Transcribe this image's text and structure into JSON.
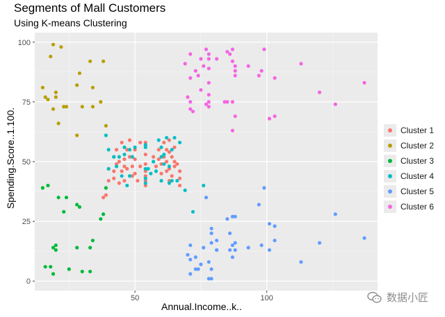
{
  "chart_data": {
    "type": "scatter",
    "title": "Segments of Mall Customers",
    "subtitle": "Using K-means Clustering",
    "xlabel": "Annual.Income..k..",
    "ylabel": "Spending.Score..1.100.",
    "xlim": [
      12,
      142
    ],
    "ylim": [
      -4,
      104
    ],
    "x_ticks": [
      50,
      100
    ],
    "y_ticks": [
      0,
      25,
      50,
      75,
      100
    ],
    "grid": true,
    "legend_position": "right",
    "series": [
      {
        "name": "Cluster 1",
        "color": "#F8766D",
        "points": [
          [
            38,
            35
          ],
          [
            39,
            36
          ],
          [
            40,
            42
          ],
          [
            40,
            47
          ],
          [
            42,
            52
          ],
          [
            42,
            46
          ],
          [
            43,
            55
          ],
          [
            43,
            49
          ],
          [
            44,
            50
          ],
          [
            45,
            46
          ],
          [
            45,
            58
          ],
          [
            46,
            51
          ],
          [
            46,
            42
          ],
          [
            47,
            47
          ],
          [
            47,
            55
          ],
          [
            48,
            52
          ],
          [
            48,
            59
          ],
          [
            49,
            44
          ],
          [
            49,
            48
          ],
          [
            50,
            45
          ],
          [
            50,
            51
          ],
          [
            51,
            42
          ],
          [
            52,
            48
          ],
          [
            54,
            44
          ],
          [
            54,
            49
          ],
          [
            54,
            46
          ],
          [
            54,
            40
          ],
          [
            54,
            53
          ],
          [
            54,
            58
          ],
          [
            54,
            42
          ],
          [
            58,
            48
          ],
          [
            59,
            51
          ],
          [
            60,
            42
          ],
          [
            60,
            49
          ],
          [
            61,
            52
          ],
          [
            62,
            50
          ],
          [
            62,
            55
          ],
          [
            62,
            46
          ],
          [
            63,
            42
          ],
          [
            63,
            47
          ],
          [
            64,
            52
          ],
          [
            64,
            44
          ],
          [
            65,
            48
          ],
          [
            65,
            50
          ],
          [
            67,
            46
          ],
          [
            67,
            43
          ],
          [
            67,
            40
          ],
          [
            63,
            54
          ],
          [
            65,
            56
          ],
          [
            66,
            49
          ],
          [
            59,
            55
          ],
          [
            63,
            59
          ],
          [
            52,
            58
          ],
          [
            57,
            52
          ],
          [
            60,
            45
          ],
          [
            46,
            48
          ],
          [
            44,
            41
          ],
          [
            42,
            43
          ],
          [
            50,
            55
          ],
          [
            61,
            58
          ]
        ]
      },
      {
        "name": "Cluster 2",
        "color": "#B79F00",
        "points": [
          [
            15,
            81
          ],
          [
            16,
            77
          ],
          [
            17,
            76
          ],
          [
            18,
            94
          ],
          [
            19,
            72
          ],
          [
            19,
            99
          ],
          [
            20,
            77
          ],
          [
            20,
            79
          ],
          [
            21,
            66
          ],
          [
            22,
            98
          ],
          [
            23,
            73
          ],
          [
            24,
            73
          ],
          [
            28,
            82
          ],
          [
            28,
            61
          ],
          [
            29,
            87
          ],
          [
            30,
            73
          ],
          [
            33,
            92
          ],
          [
            34,
            73
          ],
          [
            34,
            81
          ],
          [
            37,
            75
          ],
          [
            38,
            92
          ],
          [
            39,
            65
          ]
        ]
      },
      {
        "name": "Cluster 3",
        "color": "#00BA38",
        "points": [
          [
            15,
            39
          ],
          [
            16,
            6
          ],
          [
            17,
            40
          ],
          [
            18,
            6
          ],
          [
            19,
            3
          ],
          [
            19,
            14
          ],
          [
            20,
            15
          ],
          [
            20,
            13
          ],
          [
            21,
            35
          ],
          [
            23,
            29
          ],
          [
            24,
            35
          ],
          [
            25,
            5
          ],
          [
            28,
            14
          ],
          [
            28,
            32
          ],
          [
            29,
            31
          ],
          [
            30,
            4
          ],
          [
            33,
            4
          ],
          [
            33,
            14
          ],
          [
            34,
            17
          ],
          [
            37,
            26
          ],
          [
            38,
            28
          ],
          [
            39,
            39
          ]
        ]
      },
      {
        "name": "Cluster 4",
        "color": "#00BFC4",
        "points": [
          [
            39,
            61
          ],
          [
            40,
            55
          ],
          [
            40,
            47
          ],
          [
            42,
            52
          ],
          [
            43,
            48
          ],
          [
            44,
            52
          ],
          [
            45,
            44
          ],
          [
            46,
            56
          ],
          [
            46,
            53
          ],
          [
            47,
            40
          ],
          [
            48,
            55
          ],
          [
            49,
            52
          ],
          [
            50,
            56
          ],
          [
            54,
            57
          ],
          [
            54,
            47
          ],
          [
            54,
            43
          ],
          [
            54,
            56
          ],
          [
            54,
            41
          ],
          [
            55,
            47
          ],
          [
            57,
            50
          ],
          [
            58,
            46
          ],
          [
            59,
            59
          ],
          [
            60,
            52
          ],
          [
            60,
            42
          ],
          [
            61,
            49
          ],
          [
            61,
            53
          ],
          [
            62,
            60
          ],
          [
            63,
            41
          ],
          [
            63,
            48
          ],
          [
            64,
            42
          ],
          [
            65,
            60
          ],
          [
            66,
            42
          ],
          [
            67,
            58
          ],
          [
            69,
            38
          ],
          [
            72,
            29
          ],
          [
            76,
            40
          ],
          [
            64,
            55
          ],
          [
            48,
            44
          ],
          [
            56,
            45
          ],
          [
            60,
            56
          ]
        ]
      },
      {
        "name": "Cluster 5",
        "color": "#619CFF",
        "points": [
          [
            70,
            11
          ],
          [
            71,
            9
          ],
          [
            71,
            15
          ],
          [
            71,
            3
          ],
          [
            73,
            5
          ],
          [
            73,
            10
          ],
          [
            74,
            5
          ],
          [
            75,
            7
          ],
          [
            76,
            14
          ],
          [
            77,
            35
          ],
          [
            78,
            1
          ],
          [
            78,
            8
          ],
          [
            79,
            5
          ],
          [
            79,
            16
          ],
          [
            79,
            20
          ],
          [
            79,
            22
          ],
          [
            81,
            13
          ],
          [
            81,
            13
          ],
          [
            81,
            17
          ],
          [
            85,
            26
          ],
          [
            86,
            20
          ],
          [
            86,
            13
          ],
          [
            87,
            15
          ],
          [
            87,
            27
          ],
          [
            88,
            13
          ],
          [
            88,
            16
          ],
          [
            88,
            27
          ],
          [
            93,
            14
          ],
          [
            97,
            32
          ],
          [
            98,
            15
          ],
          [
            99,
            39
          ],
          [
            101,
            24
          ],
          [
            101,
            13
          ],
          [
            103,
            17
          ],
          [
            103,
            23
          ],
          [
            113,
            8
          ],
          [
            120,
            16
          ],
          [
            126,
            28
          ],
          [
            137,
            18
          ],
          [
            87,
            10
          ],
          [
            79,
            1
          ]
        ]
      },
      {
        "name": "Cluster 6",
        "color": "#F564E3",
        "points": [
          [
            69,
            91
          ],
          [
            70,
            77
          ],
          [
            71,
            95
          ],
          [
            71,
            75
          ],
          [
            71,
            72
          ],
          [
            72,
            71
          ],
          [
            73,
            88
          ],
          [
            74,
            86
          ],
          [
            75,
            93
          ],
          [
            76,
            90
          ],
          [
            77,
            97
          ],
          [
            77,
            74
          ],
          [
            78,
            78
          ],
          [
            78,
            89
          ],
          [
            78,
            73
          ],
          [
            78,
            83
          ],
          [
            78,
            93
          ],
          [
            78,
            75
          ],
          [
            78,
            95
          ],
          [
            81,
            93
          ],
          [
            85,
            75
          ],
          [
            86,
            95
          ],
          [
            87,
            97
          ],
          [
            87,
            63
          ],
          [
            87,
            75
          ],
          [
            87,
            92
          ],
          [
            88,
            69
          ],
          [
            88,
            86
          ],
          [
            88,
            90
          ],
          [
            88,
            88
          ],
          [
            93,
            90
          ],
          [
            97,
            86
          ],
          [
            98,
            88
          ],
          [
            99,
            97
          ],
          [
            101,
            68
          ],
          [
            103,
            85
          ],
          [
            103,
            69
          ],
          [
            113,
            91
          ],
          [
            120,
            79
          ],
          [
            126,
            74
          ],
          [
            137,
            83
          ],
          [
            85,
            96
          ],
          [
            84,
            75
          ],
          [
            75,
            80
          ],
          [
            71,
            85
          ]
        ]
      }
    ]
  },
  "watermark": {
    "text": "数据小匠",
    "icon": "wechat-icon"
  }
}
